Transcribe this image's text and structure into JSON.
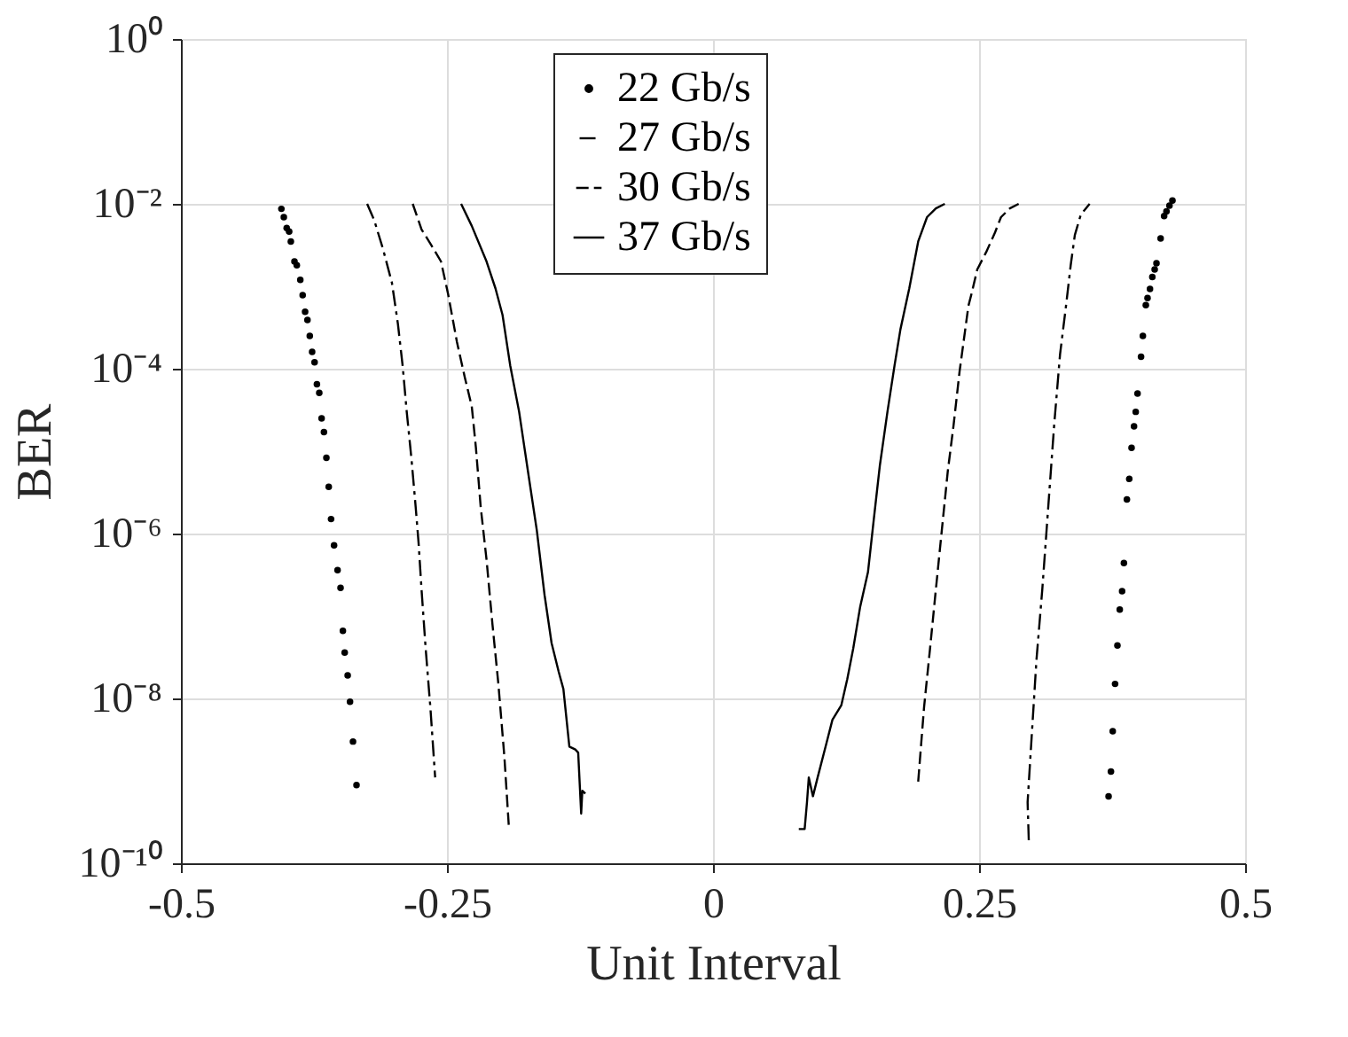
{
  "chart_data": {
    "type": "line",
    "xlabel": "Unit Interval",
    "ylabel": "BER",
    "log": true,
    "grid": true,
    "legend": "top",
    "xlim": [
      -0.5,
      0.5
    ],
    "xticks": [
      -0.5,
      -0.25,
      0,
      0.25,
      0.5
    ],
    "ylim": [
      1e-10,
      1
    ],
    "yticks": [
      {
        "value": 1,
        "label": "10⁰"
      },
      {
        "value": 0.01,
        "label": "10⁻²"
      },
      {
        "value": 0.0001,
        "label": "10⁻⁴"
      },
      {
        "value": 1e-06,
        "label": "10⁻⁶"
      },
      {
        "value": 1e-08,
        "label": "10⁻⁸"
      },
      {
        "value": 1e-10,
        "label": "10⁻¹⁰"
      }
    ],
    "series": [
      {
        "name": "22 Gb/s",
        "type": "scatter",
        "marker": "circle",
        "color": "#000000",
        "x": [
          -0.4056,
          -0.4033,
          -0.4006,
          -0.3983,
          -0.3967,
          -0.3933,
          -0.3911,
          -0.3878,
          -0.3856,
          -0.3833,
          -0.3811,
          -0.3789,
          -0.3767,
          -0.3744,
          -0.3722,
          -0.37,
          -0.3678,
          -0.3656,
          -0.3633,
          -0.3611,
          -0.3589,
          -0.3561,
          -0.3528,
          -0.35,
          -0.3478,
          -0.3461,
          -0.3433,
          -0.3411,
          -0.3383,
          -0.335,
          0.4317,
          0.4289,
          0.4261,
          0.4239,
          0.4206,
          0.4167,
          0.415,
          0.4128,
          0.4106,
          0.4083,
          0.4067,
          0.4039,
          0.4022,
          0.3989,
          0.3972,
          0.3956,
          0.3933,
          0.3911,
          0.3889,
          0.3861,
          0.3844,
          0.3822,
          0.38,
          0.3778,
          0.3756,
          0.3739,
          0.3717
        ],
        "values": [
          0.0087,
          0.0069,
          0.0051,
          0.0046,
          0.0035,
          0.002,
          0.0018,
          0.0012,
          0.00078,
          0.00049,
          0.00039,
          0.00025,
          0.00016,
          0.00012,
          6.5e-05,
          5.1e-05,
          2.5e-05,
          1.7e-05,
          8.3e-06,
          3.7e-06,
          1.5e-06,
          7.2e-07,
          3.6e-07,
          2.2e-07,
          6.6e-08,
          3.6e-08,
          1.9e-08,
          9.1e-09,
          3e-09,
          8.9e-10,
          0.011,
          0.0095,
          0.0081,
          0.0071,
          0.0038,
          0.0019,
          0.0016,
          0.0013,
          0.00093,
          0.00072,
          0.00059,
          0.00025,
          0.00014,
          5e-05,
          3e-05,
          2e-05,
          1.1e-05,
          4.6e-06,
          2.6e-06,
          4.4e-07,
          2e-07,
          1.2e-07,
          4.4e-08,
          1.5e-08,
          4e-09,
          1.3e-09,
          6.5e-10
        ]
      },
      {
        "name": "27 Gb/s",
        "line_style": "dashdot",
        "color": "#000000",
        "x": [
          -0.325,
          -0.3183,
          -0.31,
          -0.3017,
          -0.2961,
          -0.2917,
          -0.2878,
          -0.2833,
          -0.2794,
          -0.2767,
          -0.2739,
          -0.27,
          -0.2656,
          -0.2611,
          null,
          0.2967,
          0.2956,
          0.2994,
          0.3039,
          0.3094,
          0.315,
          0.3206,
          0.3261,
          0.3317,
          0.3361,
          0.34,
          0.3456,
          0.3539
        ],
        "values": [
          0.01,
          0.0063,
          0.0028,
          0.0011,
          0.00035,
          0.00011,
          3e-05,
          7.9e-06,
          2.1e-06,
          7.8e-07,
          2.1e-07,
          4e-08,
          7.8e-09,
          1.1e-09,
          null,
          1.9e-10,
          5.5e-10,
          3.4e-09,
          2.9e-08,
          2.1e-07,
          2.1e-06,
          2.1e-05,
          0.00015,
          0.00058,
          0.0018,
          0.0042,
          0.0074,
          0.01
        ]
      },
      {
        "name": "30 Gb/s",
        "line_style": "dashed",
        "color": "#000000",
        "x": [
          -0.2822,
          -0.2739,
          -0.2656,
          -0.2556,
          -0.2489,
          -0.2406,
          -0.2333,
          -0.2267,
          -0.2228,
          -0.2183,
          -0.2128,
          -0.2072,
          -0.2017,
          -0.1961,
          -0.1917,
          null,
          0.1928,
          0.1983,
          0.2039,
          0.2094,
          0.215,
          0.2206,
          0.2261,
          0.2317,
          0.24,
          0.2428,
          0.2483,
          0.2567,
          0.265,
          0.2706,
          0.2789,
          0.2872
        ],
        "values": [
          0.01,
          0.0049,
          0.0033,
          0.002,
          0.0008,
          0.00021,
          7.9e-05,
          3.5e-05,
          1.1e-05,
          2.1e-06,
          4.8e-07,
          7.8e-08,
          1.5e-08,
          2e-09,
          2.6e-10,
          null,
          9.8e-10,
          7.8e-09,
          4e-08,
          2.1e-07,
          1.1e-06,
          5.7e-06,
          2.1e-05,
          9.3e-05,
          0.00058,
          0.0008,
          0.0016,
          0.0026,
          0.0045,
          0.0069,
          0.0088,
          0.01
        ]
      },
      {
        "name": "37 Gb/s",
        "line_style": "solid",
        "color": "#000000",
        "x": [
          -0.2367,
          -0.2267,
          -0.2128,
          -0.2044,
          -0.1978,
          -0.1906,
          -0.1822,
          -0.1739,
          -0.1656,
          -0.1583,
          -0.1517,
          -0.145,
          -0.1406,
          -0.135,
          -0.1294,
          -0.1267,
          -0.1239,
          -0.1228,
          -0.12,
          null,
          0.0806,
          0.0861,
          0.0883,
          0.09,
          0.0939,
          0.0983,
          0.1067,
          0.1122,
          0.1206,
          0.1261,
          0.1317,
          0.1383,
          0.1456,
          0.1511,
          0.1567,
          0.1639,
          0.1706,
          0.1761,
          0.1844,
          0.1928,
          0.2011,
          0.2094,
          0.2178
        ],
        "values": [
          0.01,
          0.0054,
          0.002,
          0.00094,
          0.00045,
          0.00011,
          3e-05,
          5.7e-06,
          1.1e-06,
          1.8e-07,
          4.7e-08,
          2.1e-08,
          1.3e-08,
          2.6e-09,
          2.4e-09,
          2.2e-09,
          4e-10,
          7.6e-10,
          7e-10,
          null,
          2.6e-10,
          2.6e-10,
          5.5e-10,
          1.1e-09,
          6.5e-10,
          1.1e-09,
          2.9e-09,
          5.5e-09,
          8.3e-09,
          1.7e-08,
          4e-08,
          1.3e-07,
          3.4e-07,
          1.5e-06,
          6.6e-06,
          3e-05,
          0.00011,
          0.0003,
          0.00094,
          0.0035,
          0.0069,
          0.0088,
          0.01
        ]
      }
    ]
  }
}
